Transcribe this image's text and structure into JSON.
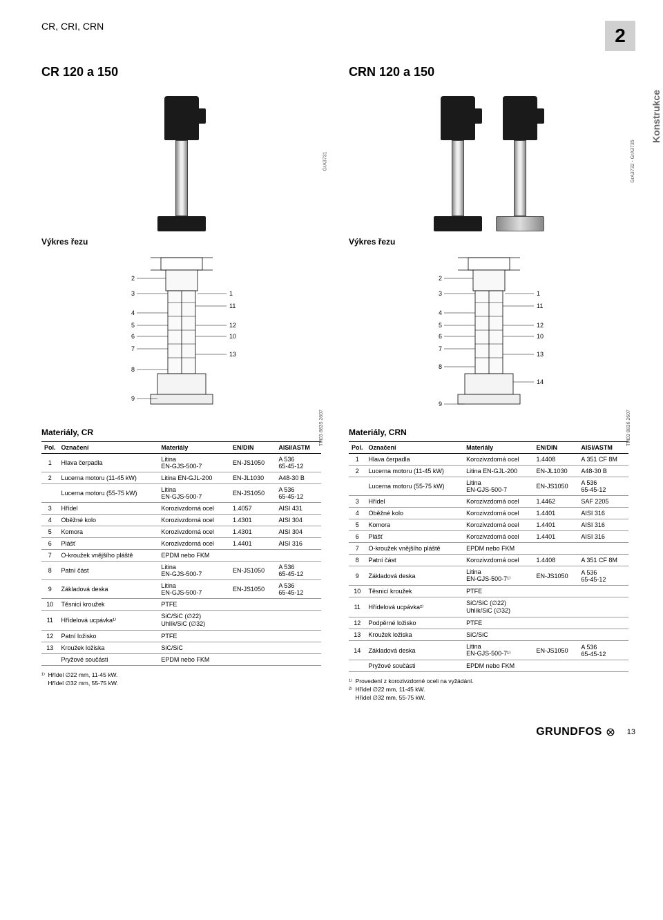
{
  "doc_title": "CR, CRI, CRN",
  "section_number": "2",
  "sidebar_label": "Konstrukce",
  "left": {
    "title": "CR 120 a 150",
    "img_code": "GrA3731",
    "cut_title": "Výkres řezu",
    "tm_code": "TM03 8835 2607",
    "mat_title": "Materiály, CR",
    "callouts": [
      2,
      3,
      4,
      5,
      6,
      7,
      8,
      9,
      1,
      11,
      12,
      10,
      13
    ],
    "table": {
      "columns": [
        "Pol.",
        "Označení",
        "Materiály",
        "EN/DIN",
        "AISI/ASTM"
      ],
      "rows": [
        [
          "1",
          "Hlava čerpadla",
          "Litina\nEN-GJS-500-7",
          "EN-JS1050",
          "A 536\n65-45-12"
        ],
        [
          "2",
          "Lucerna motoru (11-45 kW)",
          "Litina EN-GJL-200",
          "EN-JL1030",
          "A48-30 B"
        ],
        [
          "",
          "Lucerna motoru (55-75 kW)",
          "Litina\nEN-GJS-500-7",
          "EN-JS1050",
          "A 536\n65-45-12"
        ],
        [
          "3",
          "Hřídel",
          "Korozivzdorná ocel",
          "1.4057",
          "AISI 431"
        ],
        [
          "4",
          "Oběžné kolo",
          "Korozivzdorná ocel",
          "1.4301",
          "AISI 304"
        ],
        [
          "5",
          "Komora",
          "Korozivzdorná ocel",
          "1.4301",
          "AISI 304"
        ],
        [
          "6",
          "Plášť",
          "Korozivzdorná ocel",
          "1.4401",
          "AISI 316"
        ],
        [
          "7",
          "O-kroužek vnějšího pláště",
          "EPDM nebo FKM",
          "",
          ""
        ],
        [
          "8",
          "Patní část",
          "Litina\nEN-GJS-500-7",
          "EN-JS1050",
          "A 536\n65-45-12"
        ],
        [
          "9",
          "Základová deska",
          "Litina\nEN-GJS-500-7",
          "EN-JS1050",
          "A 536\n65-45-12"
        ],
        [
          "10",
          "Těsnicí kroužek",
          "PTFE",
          "",
          ""
        ],
        [
          "11",
          "Hřídelová ucpávka¹⁾",
          "SiC/SiC (∅22)\nUhlík/SiC (∅32)",
          "",
          ""
        ],
        [
          "12",
          "Patní ložisko",
          "PTFE",
          "",
          ""
        ],
        [
          "13",
          "Kroužek ložiska",
          "SiC/SiC",
          "",
          ""
        ],
        [
          "",
          "Pryžové součásti",
          "EPDM nebo FKM",
          "",
          ""
        ]
      ]
    },
    "footnotes": [
      "¹⁾  Hřídel ∅22 mm, 11-45 kW.",
      "    Hřídel ∅32 mm, 55-75 kW."
    ]
  },
  "right": {
    "title": "CRN 120 a 150",
    "img_code": "GrA3732 - GrA3735",
    "cut_title": "Výkres řezu",
    "tm_code": "TM03 8836 2607",
    "mat_title": "Materiály, CRN",
    "callouts": [
      2,
      3,
      4,
      5,
      6,
      7,
      8,
      9,
      1,
      11,
      12,
      10,
      13,
      14
    ],
    "table": {
      "columns": [
        "Pol.",
        "Označení",
        "Materiály",
        "EN/DIN",
        "AISI/ASTM"
      ],
      "rows": [
        [
          "1",
          "Hlava čerpadla",
          "Korozivzdorná ocel",
          "1.4408",
          "A 351 CF 8M"
        ],
        [
          "2",
          "Lucerna motoru (11-45 kW)",
          "Litina EN-GJL-200",
          "EN-JL1030",
          "A48-30 B"
        ],
        [
          "",
          "Lucerna motoru (55-75 kW)",
          "Litina\nEN-GJS-500-7",
          "EN-JS1050",
          "A 536\n65-45-12"
        ],
        [
          "3",
          "Hřídel",
          "Korozivzdorná ocel",
          "1.4462",
          "SAF 2205"
        ],
        [
          "4",
          "Oběžné kolo",
          "Korozivzdorná ocel",
          "1.4401",
          "AISI 316"
        ],
        [
          "5",
          "Komora",
          "Korozivzdorná ocel",
          "1.4401",
          "AISI 316"
        ],
        [
          "6",
          "Plášť",
          "Korozivzdorná ocel",
          "1.4401",
          "AISI 316"
        ],
        [
          "7",
          "O-kroužek vnějšího pláště",
          "EPDM nebo FKM",
          "",
          ""
        ],
        [
          "8",
          "Patní část",
          "Korozivzdorná ocel",
          "1.4408",
          "A 351 CF 8M"
        ],
        [
          "9",
          "Základová deska",
          "Litina\nEN-GJS-500-7¹⁾",
          "EN-JS1050",
          "A 536\n65-45-12"
        ],
        [
          "10",
          "Těsnicí kroužek",
          "PTFE",
          "",
          ""
        ],
        [
          "11",
          "Hřídelová ucpávka²⁾",
          "SiC/SiC (∅22)\nUhlík/SiC (∅32)",
          "",
          ""
        ],
        [
          "12",
          "Podpěrné ložisko",
          "PTFE",
          "",
          ""
        ],
        [
          "13",
          "Kroužek ložiska",
          "SiC/SiC",
          "",
          ""
        ],
        [
          "14",
          "Základová deska",
          "Litina\nEN-GJS-500-7¹⁾",
          "EN-JS1050",
          "A 536\n65-45-12"
        ],
        [
          "",
          "Pryžové součásti",
          "EPDM nebo FKM",
          "",
          ""
        ]
      ]
    },
    "footnotes": [
      "¹⁾  Provedení z korozivzdorné oceli na vyžádání.",
      "²⁾  Hřídel ∅22 mm, 11-45 kW.",
      "    Hřídel ∅32 mm, 55-75 kW."
    ]
  },
  "footer": {
    "brand": "GRUNDFOS",
    "page": "13"
  },
  "styling": {
    "page_bg": "#ffffff",
    "text_color": "#000000",
    "section_bg": "#d0d0d0",
    "table_border": "#000000",
    "table_row_border": "#999999",
    "base_font": "Arial",
    "title_fontsize": 18,
    "body_fontsize": 11,
    "table_fontsize": 9
  }
}
